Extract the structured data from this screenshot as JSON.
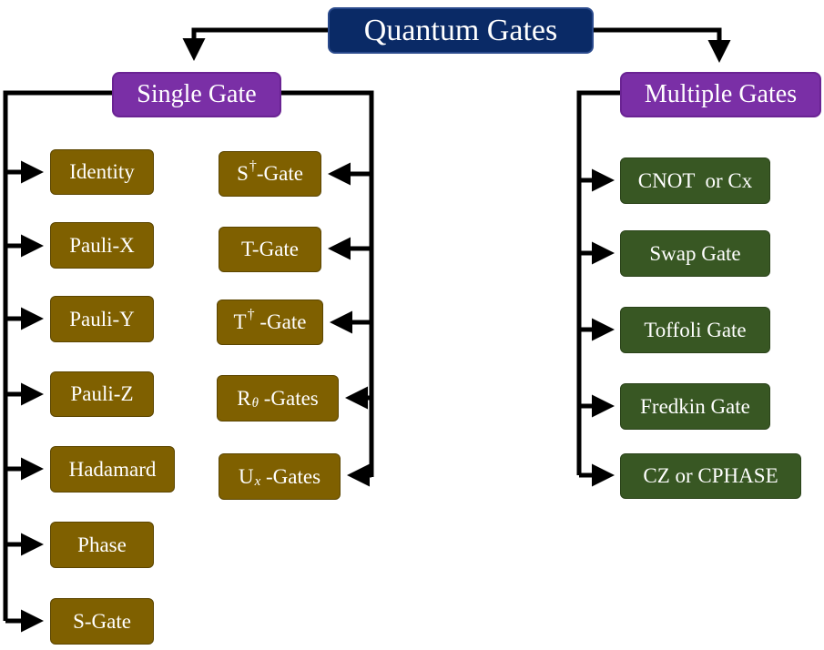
{
  "root": {
    "label": "Quantum Gates"
  },
  "single": {
    "label": "Single Gate",
    "left_column": [
      "Identity",
      "Pauli-X",
      "Pauli-Y",
      "Pauli-Z",
      "Hadamard",
      "Phase",
      "S-Gate"
    ],
    "right_column": {
      "s_dagger": {
        "base": "S",
        "sup": "†",
        "rest": "-Gate"
      },
      "t_gate": {
        "label": "T-Gate"
      },
      "t_dagger": {
        "base": "T",
        "sup": "†",
        "rest": " -Gate"
      },
      "r_theta": {
        "base": "R",
        "sub": "θ",
        "rest": " -Gates"
      },
      "u_x": {
        "base": "U",
        "sub": "x",
        "rest": " -Gates"
      }
    }
  },
  "multiple": {
    "label": "Multiple Gates",
    "gates": [
      "CNOT  or Cx",
      "Swap Gate",
      "Toffoli Gate",
      "Fredkin Gate",
      "CZ or CPHASE"
    ]
  },
  "colors": {
    "root": "#0a2a66",
    "category": "#7a2fa6",
    "single_gate": "#7f6000",
    "multi_gate": "#385723",
    "connector": "#000000"
  }
}
